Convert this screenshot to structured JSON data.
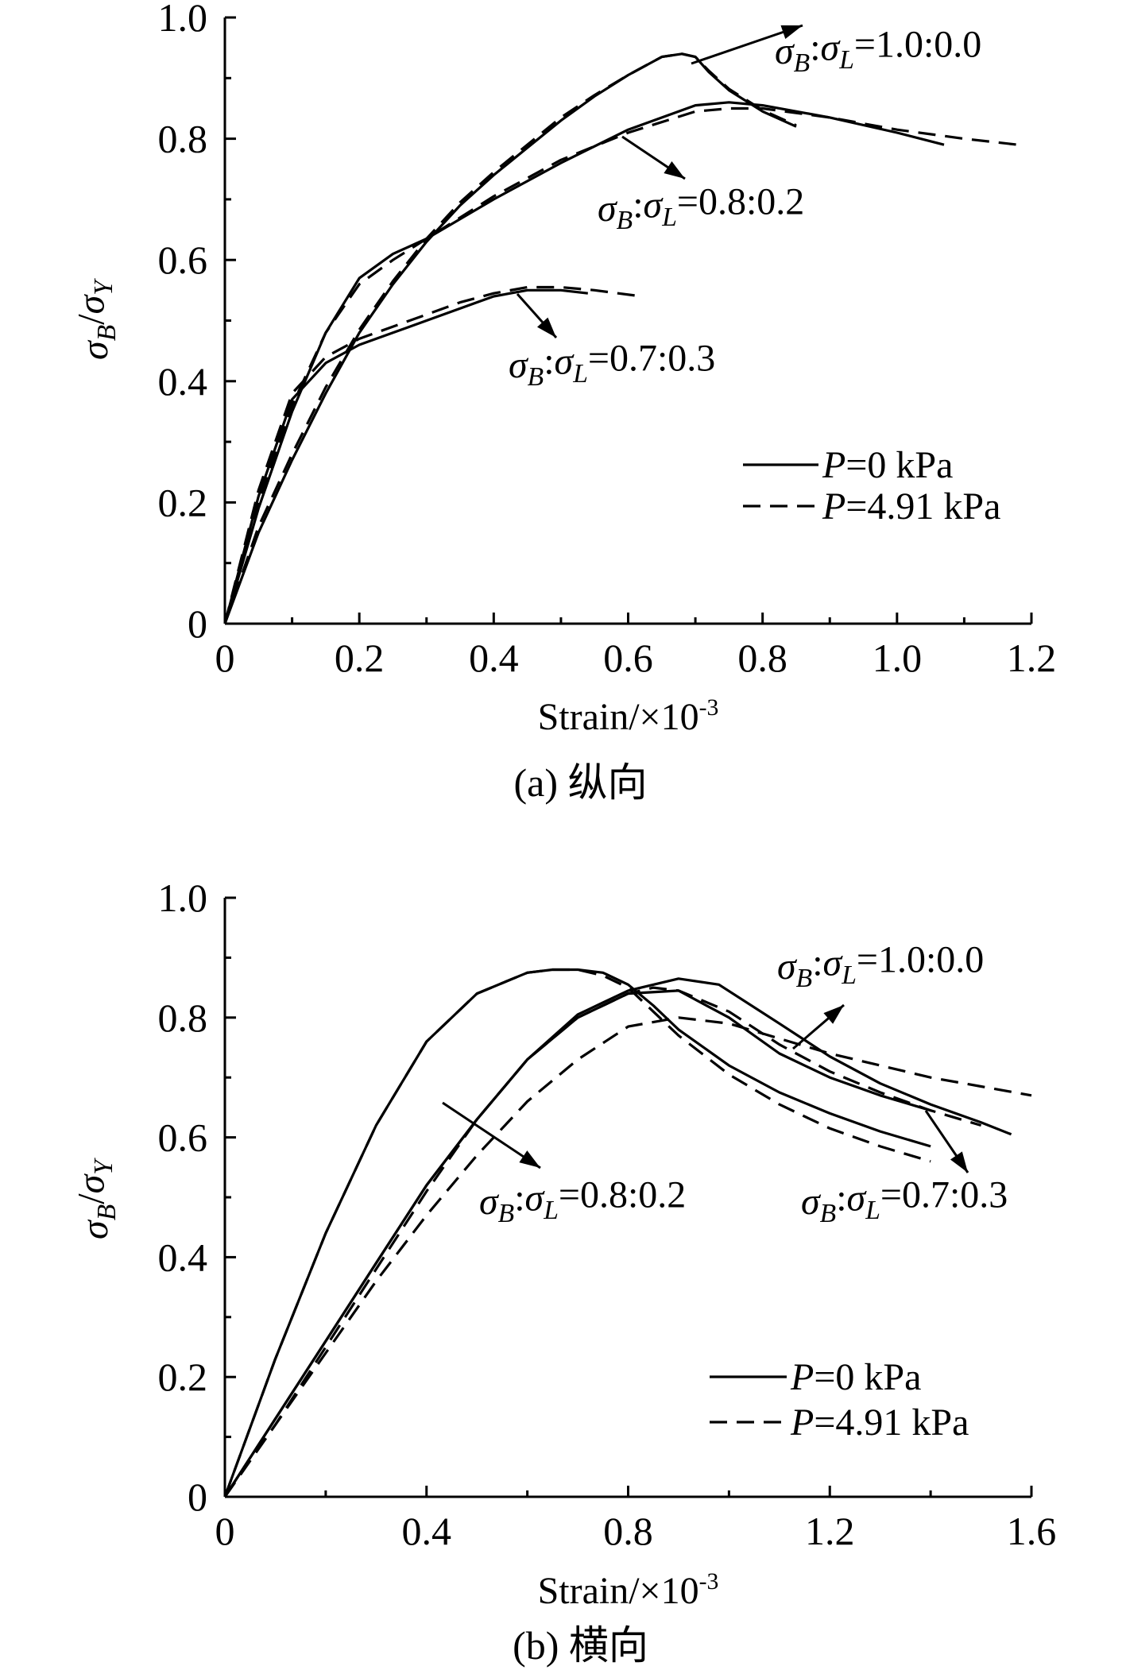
{
  "chart_data": [
    {
      "type": "line",
      "caption": "(a) 纵向",
      "xlabel": "Strain/×10",
      "xlabel_exp": "-3",
      "ylabel": "σB/σY",
      "xlim": [
        0,
        1.2
      ],
      "ylim": [
        0,
        1.0
      ],
      "xticks": [
        "0",
        "0.2",
        "0.4",
        "0.6",
        "0.8",
        "1.0",
        "1.2"
      ],
      "yticks": [
        "0",
        "0.2",
        "0.4",
        "0.6",
        "0.8",
        "1.0"
      ],
      "grid": false,
      "legend": {
        "placement": "lower-right",
        "entries": [
          {
            "label": "P=0 kPa",
            "style": "solid"
          },
          {
            "label": "P=4.91 kPa",
            "style": "dashed"
          }
        ]
      },
      "annotations": [
        {
          "text": "σB:σL=1.0:0.0"
        },
        {
          "text": "σB:σL=0.8:0.2"
        },
        {
          "text": "σB:σL=0.7:0.3"
        }
      ],
      "series": [
        {
          "ratio": "σB:σL=1.0:0.0",
          "pressure": "P=0 kPa",
          "style": "solid",
          "x": [
            0,
            0.05,
            0.1,
            0.15,
            0.2,
            0.25,
            0.3,
            0.35,
            0.4,
            0.45,
            0.5,
            0.55,
            0.6,
            0.65,
            0.68,
            0.7,
            0.72,
            0.75,
            0.8,
            0.85
          ],
          "y": [
            0,
            0.15,
            0.27,
            0.38,
            0.48,
            0.56,
            0.63,
            0.69,
            0.74,
            0.785,
            0.83,
            0.87,
            0.905,
            0.935,
            0.94,
            0.935,
            0.91,
            0.88,
            0.845,
            0.82
          ]
        },
        {
          "ratio": "σB:σL=1.0:0.0",
          "pressure": "P=4.91 kPa",
          "style": "dashed",
          "x": [
            0,
            0.05,
            0.1,
            0.15,
            0.2,
            0.25,
            0.3,
            0.35,
            0.4,
            0.45,
            0.5,
            0.55,
            0.6,
            0.65,
            0.68,
            0.7,
            0.72,
            0.75,
            0.8,
            0.85
          ],
          "y": [
            0,
            0.16,
            0.28,
            0.39,
            0.485,
            0.565,
            0.635,
            0.695,
            0.745,
            0.79,
            0.835,
            0.872,
            0.905,
            0.935,
            0.94,
            0.935,
            0.912,
            0.882,
            0.847,
            0.822
          ]
        },
        {
          "ratio": "σB:σL=0.8:0.2",
          "pressure": "P=0 kPa",
          "style": "solid",
          "x": [
            0,
            0.05,
            0.1,
            0.15,
            0.2,
            0.25,
            0.3,
            0.4,
            0.5,
            0.6,
            0.7,
            0.75,
            0.8,
            0.9,
            1.0,
            1.07
          ],
          "y": [
            0,
            0.19,
            0.35,
            0.48,
            0.57,
            0.61,
            0.635,
            0.7,
            0.76,
            0.815,
            0.855,
            0.86,
            0.855,
            0.835,
            0.81,
            0.79
          ]
        },
        {
          "ratio": "σB:σL=0.8:0.2",
          "pressure": "P=4.91 kPa",
          "style": "dashed",
          "x": [
            0,
            0.05,
            0.1,
            0.15,
            0.2,
            0.25,
            0.3,
            0.4,
            0.5,
            0.6,
            0.7,
            0.75,
            0.8,
            0.9,
            1.0,
            1.1,
            1.18
          ],
          "y": [
            0,
            0.2,
            0.36,
            0.48,
            0.56,
            0.6,
            0.635,
            0.705,
            0.765,
            0.81,
            0.845,
            0.85,
            0.85,
            0.835,
            0.815,
            0.8,
            0.79
          ]
        },
        {
          "ratio": "σB:σL=0.7:0.3",
          "pressure": "P=0 kPa",
          "style": "solid",
          "x": [
            0,
            0.05,
            0.1,
            0.15,
            0.2,
            0.25,
            0.3,
            0.35,
            0.4,
            0.45,
            0.5,
            0.54
          ],
          "y": [
            0,
            0.21,
            0.37,
            0.43,
            0.46,
            0.48,
            0.5,
            0.52,
            0.54,
            0.55,
            0.55,
            0.545
          ]
        },
        {
          "ratio": "σB:σL=0.7:0.3",
          "pressure": "P=4.91 kPa",
          "style": "dashed",
          "x": [
            0,
            0.05,
            0.1,
            0.15,
            0.2,
            0.25,
            0.3,
            0.35,
            0.4,
            0.45,
            0.5,
            0.55,
            0.62
          ],
          "y": [
            0,
            0.22,
            0.38,
            0.44,
            0.47,
            0.49,
            0.51,
            0.53,
            0.545,
            0.555,
            0.555,
            0.55,
            0.54
          ]
        }
      ]
    },
    {
      "type": "line",
      "caption": "(b) 横向",
      "xlabel": "Strain/×10",
      "xlabel_exp": "-3",
      "ylabel": "σB/σY",
      "xlim": [
        0,
        1.6
      ],
      "ylim": [
        0,
        1.0
      ],
      "xticks": [
        "0",
        "0.4",
        "0.8",
        "1.2",
        "1.6"
      ],
      "yticks": [
        "0",
        "0.2",
        "0.4",
        "0.6",
        "0.8",
        "1.0"
      ],
      "grid": false,
      "legend": {
        "placement": "lower-right",
        "entries": [
          {
            "label": "P=0 kPa",
            "style": "solid"
          },
          {
            "label": "P=4.91 kPa",
            "style": "dashed"
          }
        ]
      },
      "annotations": [
        {
          "text": "σB:σL=1.0:0.0"
        },
        {
          "text": "σB:σL=0.8:0.2"
        },
        {
          "text": "σB:σL=0.7:0.3"
        }
      ],
      "series": [
        {
          "ratio": "σB:σL=0.8:0.2",
          "pressure": "P=0 kPa",
          "style": "solid",
          "x": [
            0,
            0.1,
            0.2,
            0.3,
            0.4,
            0.5,
            0.6,
            0.65,
            0.7,
            0.75,
            0.8,
            0.85,
            0.9,
            1.0,
            1.1,
            1.2,
            1.3,
            1.4
          ],
          "y": [
            0,
            0.23,
            0.44,
            0.62,
            0.76,
            0.84,
            0.875,
            0.88,
            0.88,
            0.875,
            0.855,
            0.82,
            0.78,
            0.72,
            0.675,
            0.64,
            0.61,
            0.585
          ]
        },
        {
          "ratio": "σB:σL=0.8:0.2",
          "pressure": "P=4.91 kPa",
          "style": "dashed",
          "x": [
            0,
            0.1,
            0.2,
            0.3,
            0.4,
            0.5,
            0.6,
            0.65,
            0.7,
            0.75,
            0.8,
            0.85,
            0.9,
            1.0,
            1.1,
            1.2,
            1.3,
            1.4
          ],
          "y": [
            0,
            0.23,
            0.44,
            0.62,
            0.76,
            0.84,
            0.875,
            0.88,
            0.88,
            0.87,
            0.85,
            0.81,
            0.77,
            0.705,
            0.655,
            0.615,
            0.585,
            0.56
          ]
        },
        {
          "ratio": "σB:σL=1.0:0.0",
          "pressure": "P=0 kPa",
          "style": "solid",
          "x": [
            0,
            0.1,
            0.2,
            0.3,
            0.4,
            0.5,
            0.6,
            0.7,
            0.8,
            0.9,
            1.0,
            1.1,
            1.2,
            1.3,
            1.4
          ],
          "y": [
            0,
            0.13,
            0.26,
            0.39,
            0.52,
            0.63,
            0.73,
            0.8,
            0.84,
            0.845,
            0.8,
            0.74,
            0.7,
            0.67,
            0.645
          ]
        },
        {
          "ratio": "σB:σL=1.0:0.0",
          "pressure": "P=4.91 kPa",
          "style": "dashed",
          "x": [
            0,
            0.1,
            0.2,
            0.3,
            0.4,
            0.5,
            0.6,
            0.7,
            0.8,
            0.9,
            1.0,
            1.1,
            1.2,
            1.3,
            1.4,
            1.5,
            1.6
          ],
          "y": [
            0,
            0.12,
            0.24,
            0.36,
            0.47,
            0.57,
            0.66,
            0.73,
            0.785,
            0.8,
            0.79,
            0.765,
            0.74,
            0.72,
            0.7,
            0.685,
            0.67
          ]
        },
        {
          "ratio": "σB:σL=0.7:0.3",
          "pressure": "P=0 kPa",
          "style": "solid",
          "x": [
            0,
            0.1,
            0.2,
            0.3,
            0.4,
            0.5,
            0.6,
            0.7,
            0.8,
            0.9,
            0.98,
            1.1,
            1.2,
            1.3,
            1.4,
            1.5,
            1.56
          ],
          "y": [
            0,
            0.13,
            0.26,
            0.39,
            0.52,
            0.63,
            0.73,
            0.805,
            0.845,
            0.865,
            0.855,
            0.79,
            0.735,
            0.69,
            0.655,
            0.625,
            0.605
          ]
        },
        {
          "ratio": "σB:σL=0.7:0.3",
          "pressure": "P=4.91 kPa",
          "style": "dashed",
          "x": [
            0,
            0.1,
            0.2,
            0.3,
            0.4,
            0.5,
            0.6,
            0.7,
            0.8,
            0.85,
            0.9,
            1.0,
            1.1,
            1.2,
            1.3,
            1.4,
            1.5
          ],
          "y": [
            0,
            0.12,
            0.25,
            0.38,
            0.51,
            0.63,
            0.73,
            0.8,
            0.84,
            0.85,
            0.845,
            0.81,
            0.755,
            0.71,
            0.675,
            0.645,
            0.62
          ]
        }
      ]
    }
  ]
}
